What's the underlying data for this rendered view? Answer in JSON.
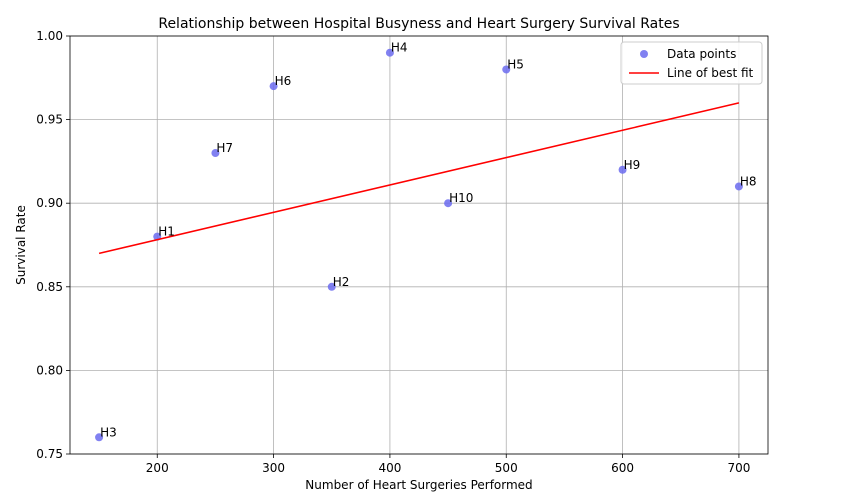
{
  "chart_data": {
    "type": "scatter",
    "title": "Relationship between Hospital Busyness and Heart Surgery Survival Rates",
    "xlabel": "Number of Heart Surgeries Performed",
    "ylabel": "Survival Rate",
    "xlim": [
      125,
      725
    ],
    "ylim": [
      0.75,
      1.0
    ],
    "x_ticks": [
      200,
      300,
      400,
      500,
      600,
      700
    ],
    "x_tick_labels": [
      "200",
      "300",
      "400",
      "500",
      "600",
      "700"
    ],
    "y_ticks": [
      0.75,
      0.8,
      0.85,
      0.9,
      0.95,
      1.0
    ],
    "y_tick_labels": [
      "0.75",
      "0.80",
      "0.85",
      "0.90",
      "0.95",
      "1.00"
    ],
    "grid": true,
    "legend_position": "top-right",
    "series": [
      {
        "name": "Data points",
        "kind": "scatter",
        "color": "#6b6bef",
        "points": [
          {
            "label": "H1",
            "x": 200,
            "y": 0.88
          },
          {
            "label": "H2",
            "x": 350,
            "y": 0.85
          },
          {
            "label": "H3",
            "x": 150,
            "y": 0.76
          },
          {
            "label": "H4",
            "x": 400,
            "y": 0.99
          },
          {
            "label": "H5",
            "x": 500,
            "y": 0.98
          },
          {
            "label": "H6",
            "x": 300,
            "y": 0.97
          },
          {
            "label": "H7",
            "x": 250,
            "y": 0.93
          },
          {
            "label": "H8",
            "x": 700,
            "y": 0.91
          },
          {
            "label": "H9",
            "x": 600,
            "y": 0.92
          },
          {
            "label": "H10",
            "x": 450,
            "y": 0.9
          }
        ]
      },
      {
        "name": "Line of best fit",
        "kind": "line",
        "color": "#ff0000",
        "points": [
          {
            "x": 150,
            "y": 0.87
          },
          {
            "x": 700,
            "y": 0.96
          }
        ]
      }
    ]
  }
}
